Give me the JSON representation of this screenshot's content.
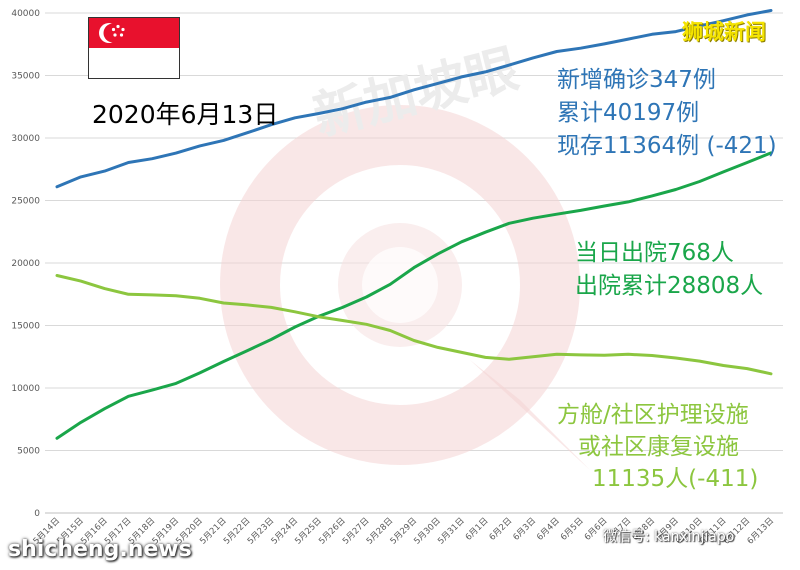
{
  "date_label": "2020年6月13日",
  "brand": "狮城新闻",
  "watermark_center": "新加坡眼",
  "watermark_site": "shicheng.news",
  "watermark_wechat": "微信号: kanxinjiapo",
  "colors": {
    "confirmed": "#2e75b6",
    "discharged": "#1aa64a",
    "community": "#8cc63f",
    "brand": "#f5e400",
    "flag_red": "#e8112d"
  },
  "annotations": {
    "confirmed": [
      "新增确诊347例",
      "累计40197例",
      "现存11364例 (-421)"
    ],
    "discharged": [
      "当日出院768人",
      "出院累计28808人"
    ],
    "community": [
      "方舱/社区护理设施",
      "或社区康复设施",
      "11135人(-411)"
    ]
  },
  "chart_data": {
    "type": "line",
    "categories": [
      "5月14日",
      "5月15日",
      "5月16日",
      "5月17日",
      "5月18日",
      "5月19日",
      "5月20日",
      "5月21日",
      "5月22日",
      "5月23日",
      "5月24日",
      "5月25日",
      "5月26日",
      "5月27日",
      "5月28日",
      "5月29日",
      "5月30日",
      "5月31日",
      "6月1日",
      "6月2日",
      "6月3日",
      "6月4日",
      "6月5日",
      "6月6日",
      "6月7日",
      "6月8日",
      "6月9日",
      "6月10日",
      "6月11日",
      "6月12日",
      "6月13日"
    ],
    "ylim": [
      0,
      40000
    ],
    "yticks": [
      0,
      5000,
      10000,
      15000,
      20000,
      25000,
      30000,
      35000,
      40000
    ],
    "grid": true,
    "series": [
      {
        "key": "confirmed",
        "values": [
          26098,
          26891,
          27356,
          28038,
          28343,
          28794,
          29364,
          29812,
          30426,
          31068,
          31616,
          31960,
          32343,
          32876,
          33249,
          33860,
          34366,
          34884,
          35292,
          35836,
          36405,
          36922,
          37183,
          37527,
          37910,
          38296,
          38514,
          38965,
          39387,
          39850,
          40197
        ]
      },
      {
        "key": "discharged",
        "values": [
          5973,
          7248,
          8342,
          9340,
          9835,
          10365,
          11207,
          12117,
          12995,
          13882,
          14876,
          15738,
          16444,
          17276,
          18294,
          19631,
          20727,
          21699,
          22466,
          23175,
          23582,
          23904,
          24209,
          24559,
          24886,
          25365,
          25877,
          26523,
          27286,
          28040,
          28808
        ]
      },
      {
        "key": "community",
        "values": [
          19000,
          18550,
          17950,
          17500,
          17450,
          17380,
          17180,
          16800,
          16650,
          16450,
          16100,
          15700,
          15400,
          15100,
          14600,
          13800,
          13250,
          12850,
          12450,
          12300,
          12500,
          12700,
          12650,
          12620,
          12700,
          12600,
          12400,
          12150,
          11800,
          11550,
          11135
        ]
      }
    ]
  }
}
